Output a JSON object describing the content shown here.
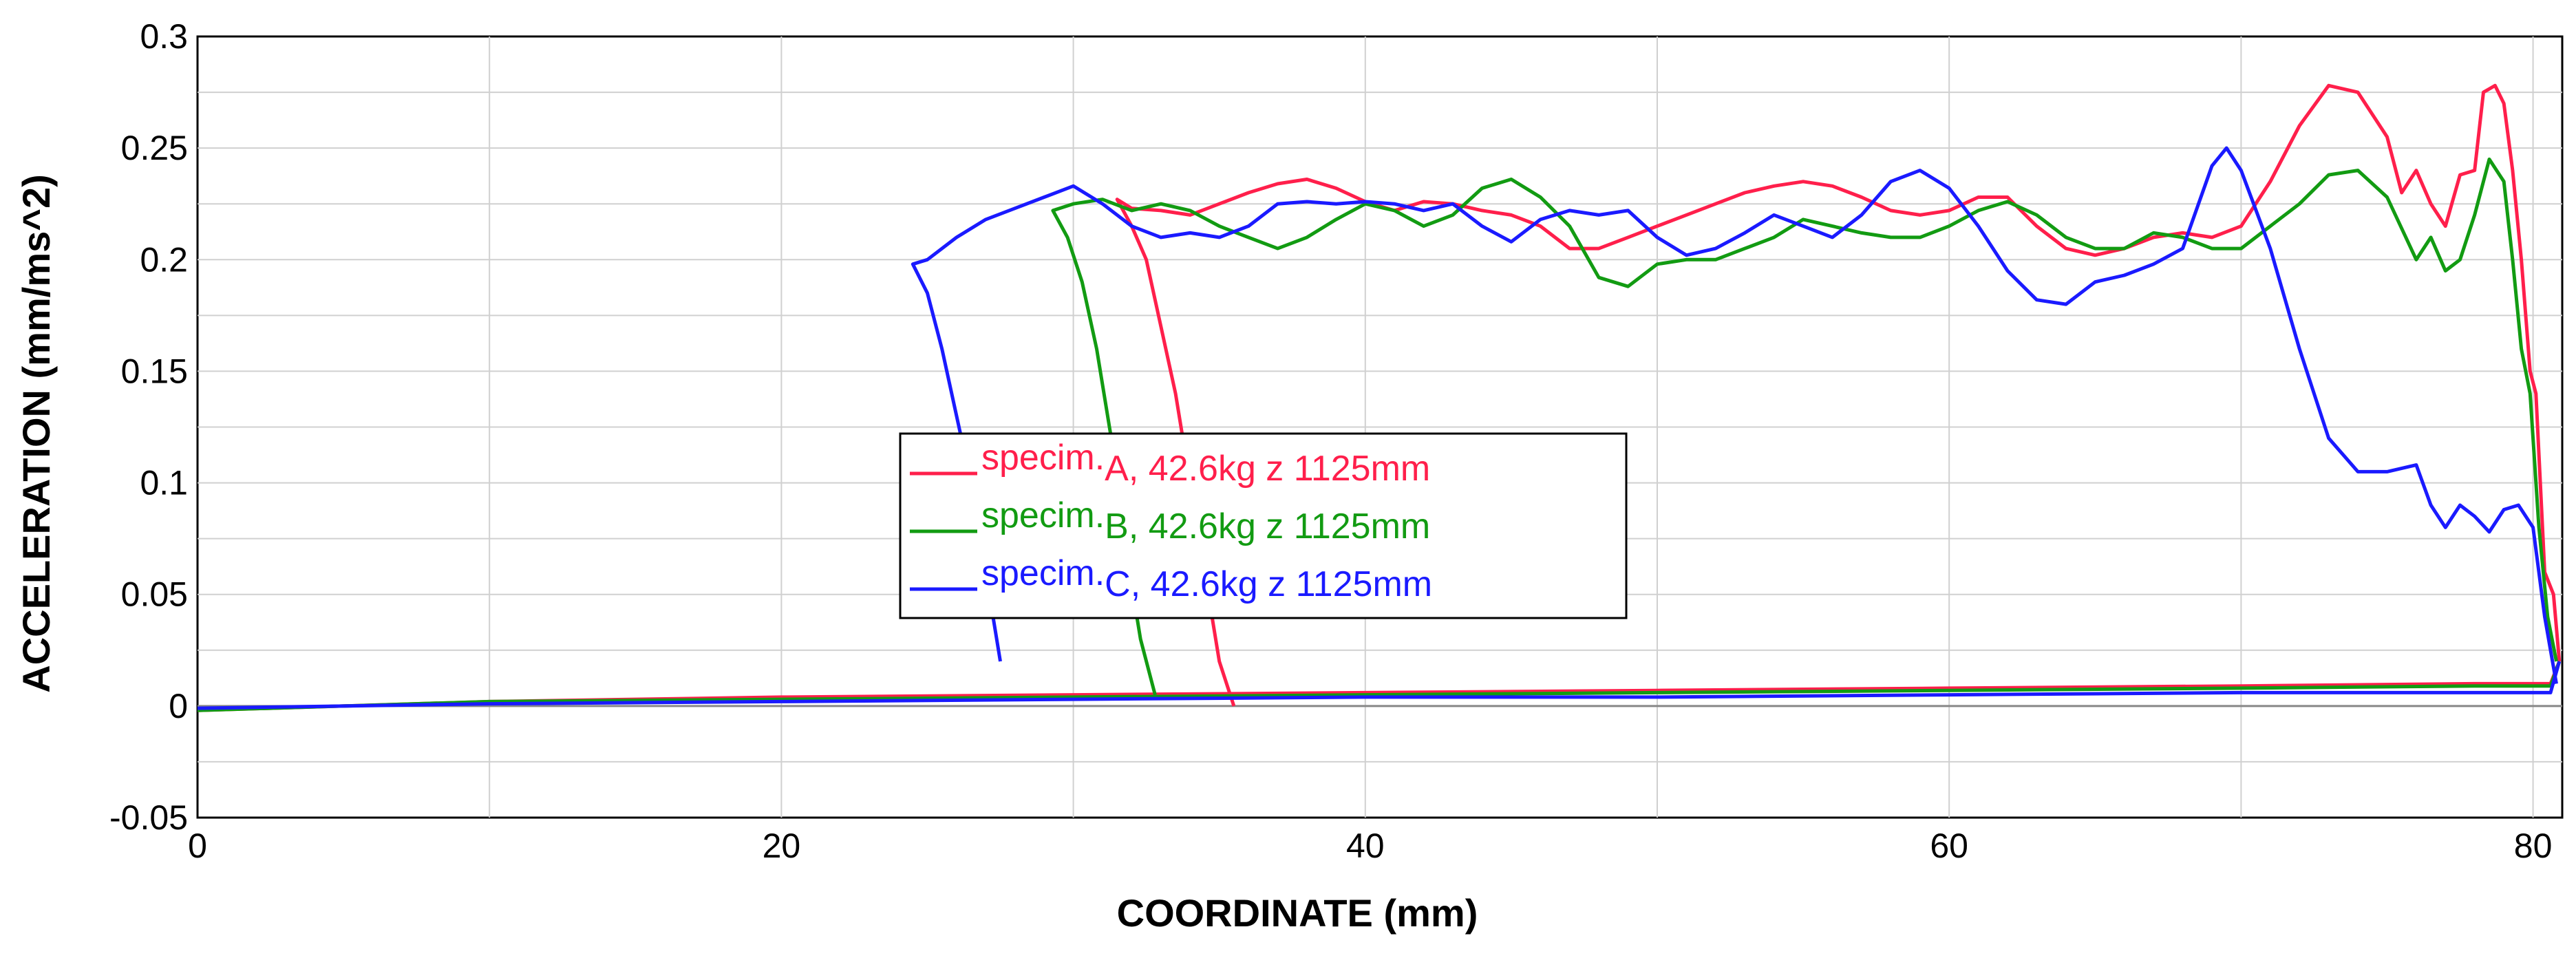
{
  "chart_data": {
    "type": "line",
    "xlabel": "COORDINATE (mm)",
    "ylabel": "ACCELERATION (mm/ms^2)",
    "xlim": [
      0,
      81
    ],
    "ylim": [
      -0.05,
      0.3
    ],
    "x_ticks": [
      "0",
      "20",
      "40",
      "60",
      "80"
    ],
    "x_tick_values": [
      0,
      20,
      40,
      60,
      80
    ],
    "y_ticks": [
      "-0.05",
      "0",
      "0.05",
      "0.1",
      "0.15",
      "0.2",
      "0.25",
      "0.3"
    ],
    "y_tick_values": [
      -0.05,
      0,
      0.05,
      0.1,
      0.15,
      0.2,
      0.25,
      0.3
    ],
    "grid": true,
    "legend_position": "center-left",
    "series": [
      {
        "name": "specim.A, 42.6kg z 1125mm",
        "legend_prefix": "specim.",
        "legend_suffix": "A, 42.6kg z 1125mm",
        "color": "#ff1f4b",
        "points": [
          [
            0,
            -0.002
          ],
          [
            10,
            0.002
          ],
          [
            20,
            0.004
          ],
          [
            30,
            0.005
          ],
          [
            40,
            0.006
          ],
          [
            50,
            0.007
          ],
          [
            60,
            0.008
          ],
          [
            70,
            0.009
          ],
          [
            78,
            0.01
          ],
          [
            80.6,
            0.01
          ],
          [
            80.9,
            0.02
          ],
          [
            35.5,
            0.0
          ],
          [
            35,
            0.02
          ],
          [
            34.5,
            0.06
          ],
          [
            34,
            0.1
          ],
          [
            33.5,
            0.14
          ],
          [
            33,
            0.17
          ],
          [
            32.5,
            0.2
          ],
          [
            32,
            0.215
          ],
          [
            31.5,
            0.227
          ],
          [
            32,
            0.223
          ],
          [
            33,
            0.222
          ],
          [
            34,
            0.22
          ],
          [
            35,
            0.225
          ],
          [
            36,
            0.23
          ],
          [
            37,
            0.234
          ],
          [
            38,
            0.236
          ],
          [
            39,
            0.232
          ],
          [
            40,
            0.226
          ],
          [
            41,
            0.222
          ],
          [
            42,
            0.226
          ],
          [
            43,
            0.225
          ],
          [
            44,
            0.222
          ],
          [
            45,
            0.22
          ],
          [
            46,
            0.215
          ],
          [
            47,
            0.205
          ],
          [
            48,
            0.205
          ],
          [
            49,
            0.21
          ],
          [
            50,
            0.215
          ],
          [
            51,
            0.22
          ],
          [
            52,
            0.225
          ],
          [
            53,
            0.23
          ],
          [
            54,
            0.233
          ],
          [
            55,
            0.235
          ],
          [
            56,
            0.233
          ],
          [
            57,
            0.228
          ],
          [
            58,
            0.222
          ],
          [
            59,
            0.22
          ],
          [
            60,
            0.222
          ],
          [
            61,
            0.228
          ],
          [
            62,
            0.228
          ],
          [
            63,
            0.215
          ],
          [
            64,
            0.205
          ],
          [
            65,
            0.202
          ],
          [
            66,
            0.205
          ],
          [
            67,
            0.21
          ],
          [
            68,
            0.212
          ],
          [
            69,
            0.21
          ],
          [
            70,
            0.215
          ],
          [
            71,
            0.235
          ],
          [
            72,
            0.26
          ],
          [
            73,
            0.278
          ],
          [
            74,
            0.275
          ],
          [
            75,
            0.255
          ],
          [
            75.5,
            0.23
          ],
          [
            76,
            0.24
          ],
          [
            76.5,
            0.225
          ],
          [
            77,
            0.215
          ],
          [
            77.5,
            0.238
          ],
          [
            78,
            0.24
          ],
          [
            78.3,
            0.275
          ],
          [
            78.7,
            0.278
          ],
          [
            79,
            0.27
          ],
          [
            79.3,
            0.24
          ],
          [
            79.6,
            0.2
          ],
          [
            79.9,
            0.15
          ],
          [
            80.1,
            0.14
          ],
          [
            80.4,
            0.06
          ],
          [
            80.7,
            0.05
          ],
          [
            80.9,
            0.02
          ]
        ]
      },
      {
        "name": "specim.B, 42.6kg z 1125mm",
        "legend_prefix": "specim.",
        "legend_suffix": "B, 42.6kg z 1125mm",
        "color": "#129b12",
        "points": [
          [
            0,
            -0.002
          ],
          [
            10,
            0.002
          ],
          [
            20,
            0.003
          ],
          [
            30,
            0.004
          ],
          [
            40,
            0.005
          ],
          [
            50,
            0.006
          ],
          [
            60,
            0.007
          ],
          [
            70,
            0.008
          ],
          [
            78,
            0.009
          ],
          [
            80.6,
            0.009
          ],
          [
            80.9,
            0.02
          ],
          [
            32.8,
            0.005
          ],
          [
            32.3,
            0.03
          ],
          [
            31.8,
            0.07
          ],
          [
            31.3,
            0.12
          ],
          [
            30.8,
            0.16
          ],
          [
            30.3,
            0.19
          ],
          [
            29.8,
            0.21
          ],
          [
            29.3,
            0.222
          ],
          [
            30,
            0.225
          ],
          [
            31,
            0.227
          ],
          [
            32,
            0.222
          ],
          [
            33,
            0.225
          ],
          [
            34,
            0.222
          ],
          [
            35,
            0.215
          ],
          [
            36,
            0.21
          ],
          [
            37,
            0.205
          ],
          [
            38,
            0.21
          ],
          [
            39,
            0.218
          ],
          [
            40,
            0.225
          ],
          [
            41,
            0.222
          ],
          [
            42,
            0.215
          ],
          [
            43,
            0.22
          ],
          [
            44,
            0.232
          ],
          [
            45,
            0.236
          ],
          [
            46,
            0.228
          ],
          [
            47,
            0.215
          ],
          [
            48,
            0.192
          ],
          [
            49,
            0.188
          ],
          [
            50,
            0.198
          ],
          [
            51,
            0.2
          ],
          [
            52,
            0.2
          ],
          [
            53,
            0.205
          ],
          [
            54,
            0.21
          ],
          [
            55,
            0.218
          ],
          [
            56,
            0.215
          ],
          [
            57,
            0.212
          ],
          [
            58,
            0.21
          ],
          [
            59,
            0.21
          ],
          [
            60,
            0.215
          ],
          [
            61,
            0.222
          ],
          [
            62,
            0.226
          ],
          [
            63,
            0.22
          ],
          [
            64,
            0.21
          ],
          [
            65,
            0.205
          ],
          [
            66,
            0.205
          ],
          [
            67,
            0.212
          ],
          [
            68,
            0.21
          ],
          [
            69,
            0.205
          ],
          [
            70,
            0.205
          ],
          [
            71,
            0.215
          ],
          [
            72,
            0.225
          ],
          [
            73,
            0.238
          ],
          [
            74,
            0.24
          ],
          [
            75,
            0.228
          ],
          [
            76,
            0.2
          ],
          [
            76.5,
            0.21
          ],
          [
            77,
            0.195
          ],
          [
            77.5,
            0.2
          ],
          [
            78,
            0.22
          ],
          [
            78.5,
            0.245
          ],
          [
            79,
            0.235
          ],
          [
            79.3,
            0.2
          ],
          [
            79.6,
            0.16
          ],
          [
            79.9,
            0.14
          ],
          [
            80.2,
            0.08
          ],
          [
            80.5,
            0.04
          ],
          [
            80.8,
            0.02
          ]
        ]
      },
      {
        "name": "specim.C, 42.6kg z 1125mm",
        "legend_prefix": "specim.",
        "legend_suffix": "C, 42.6kg z 1125mm",
        "color": "#1a1aff",
        "points": [
          [
            0,
            -0.001
          ],
          [
            10,
            0.001
          ],
          [
            20,
            0.002
          ],
          [
            30,
            0.003
          ],
          [
            40,
            0.004
          ],
          [
            50,
            0.004
          ],
          [
            60,
            0.005
          ],
          [
            70,
            0.006
          ],
          [
            78,
            0.006
          ],
          [
            80.6,
            0.006
          ],
          [
            80.9,
            0.02
          ],
          [
            27.5,
            0.02
          ],
          [
            27,
            0.06
          ],
          [
            26.5,
            0.1
          ],
          [
            26,
            0.13
          ],
          [
            25.5,
            0.16
          ],
          [
            25,
            0.185
          ],
          [
            24.5,
            0.198
          ],
          [
            25,
            0.2
          ],
          [
            26,
            0.21
          ],
          [
            27,
            0.218
          ],
          [
            28,
            0.223
          ],
          [
            29,
            0.228
          ],
          [
            30,
            0.233
          ],
          [
            31,
            0.225
          ],
          [
            32,
            0.215
          ],
          [
            33,
            0.21
          ],
          [
            34,
            0.212
          ],
          [
            35,
            0.21
          ],
          [
            36,
            0.215
          ],
          [
            37,
            0.225
          ],
          [
            38,
            0.226
          ],
          [
            39,
            0.225
          ],
          [
            40,
            0.226
          ],
          [
            41,
            0.225
          ],
          [
            42,
            0.222
          ],
          [
            43,
            0.225
          ],
          [
            44,
            0.215
          ],
          [
            45,
            0.208
          ],
          [
            46,
            0.218
          ],
          [
            47,
            0.222
          ],
          [
            48,
            0.22
          ],
          [
            49,
            0.222
          ],
          [
            50,
            0.21
          ],
          [
            51,
            0.202
          ],
          [
            52,
            0.205
          ],
          [
            53,
            0.212
          ],
          [
            54,
            0.22
          ],
          [
            55,
            0.215
          ],
          [
            56,
            0.21
          ],
          [
            57,
            0.22
          ],
          [
            58,
            0.235
          ],
          [
            59,
            0.24
          ],
          [
            60,
            0.232
          ],
          [
            61,
            0.215
          ],
          [
            62,
            0.195
          ],
          [
            63,
            0.182
          ],
          [
            64,
            0.18
          ],
          [
            65,
            0.19
          ],
          [
            66,
            0.193
          ],
          [
            67,
            0.198
          ],
          [
            68,
            0.205
          ],
          [
            69,
            0.242
          ],
          [
            69.5,
            0.25
          ],
          [
            70,
            0.24
          ],
          [
            71,
            0.205
          ],
          [
            72,
            0.16
          ],
          [
            73,
            0.12
          ],
          [
            74,
            0.105
          ],
          [
            75,
            0.105
          ],
          [
            76,
            0.108
          ],
          [
            76.5,
            0.09
          ],
          [
            77,
            0.08
          ],
          [
            77.5,
            0.09
          ],
          [
            78,
            0.085
          ],
          [
            78.5,
            0.078
          ],
          [
            79,
            0.088
          ],
          [
            79.5,
            0.09
          ],
          [
            80,
            0.08
          ],
          [
            80.4,
            0.04
          ],
          [
            80.8,
            0.01
          ]
        ]
      }
    ]
  }
}
